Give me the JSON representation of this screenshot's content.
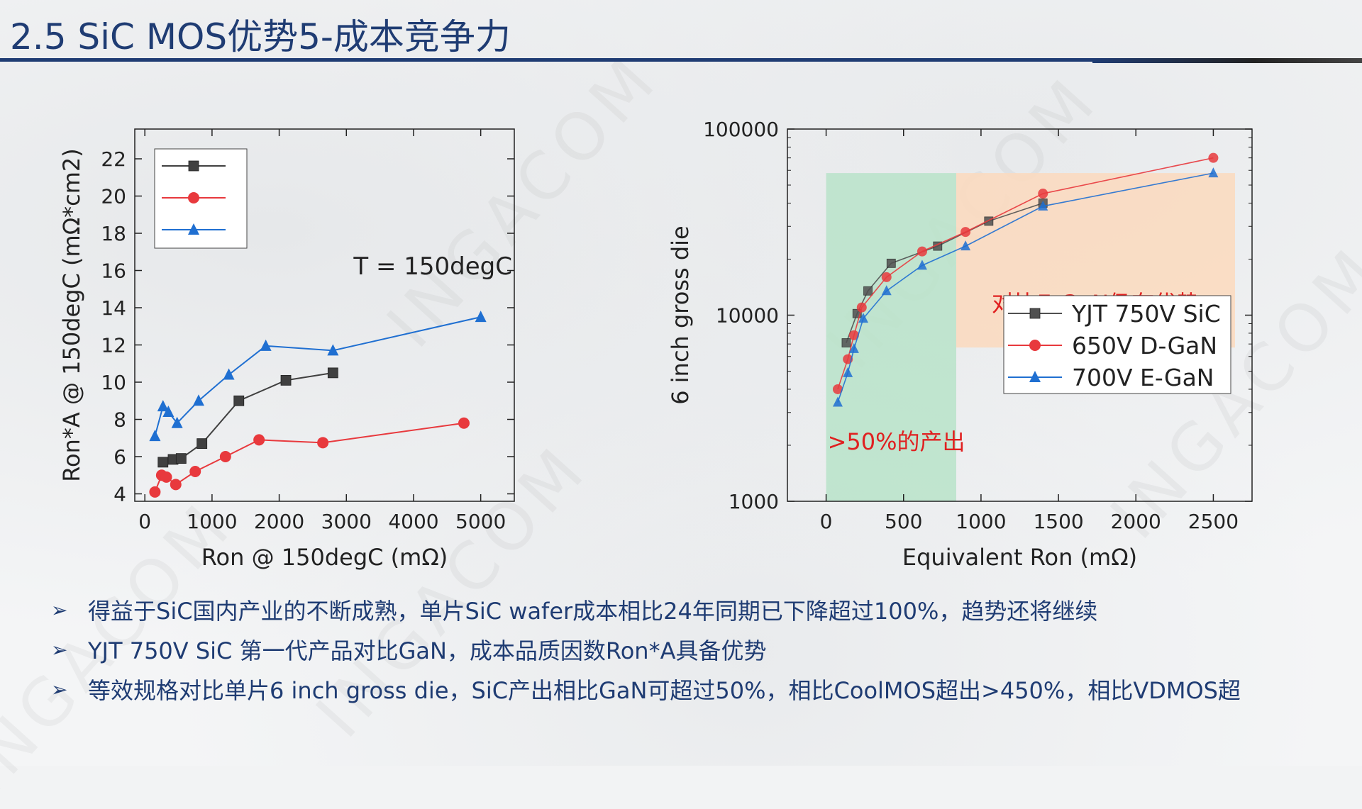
{
  "slide": {
    "title": "2.5 SiC MOS优势5-成本竞争力",
    "watermark": "INGACOM",
    "colors": {
      "title": "#1f3c73",
      "bullet_text": "#1f3c73",
      "red_text": "#e02020"
    }
  },
  "chart_data": [
    {
      "type": "line",
      "xlabel": "Ron @ 150degC (mΩ)",
      "ylabel": "Ron*A @ 150degC (mΩ*cm2)",
      "xlim": [
        -150,
        5500
      ],
      "ylim": [
        3.6,
        23.6
      ],
      "xticks": [
        0,
        1000,
        2000,
        3000,
        4000,
        5000
      ],
      "yticks": [
        4,
        6,
        8,
        10,
        12,
        14,
        16,
        18,
        20,
        22
      ],
      "grid": false,
      "legend_position": "top-left",
      "annotation": "T = 150degC",
      "series": [
        {
          "marker": "square",
          "color": "#404040",
          "x": [
            270,
            420,
            540,
            850,
            1400,
            2100,
            2800
          ],
          "y": [
            5.7,
            5.85,
            5.9,
            6.7,
            9.0,
            10.1,
            10.5
          ]
        },
        {
          "marker": "circle",
          "color": "#e8393d",
          "x": [
            150,
            250,
            320,
            460,
            750,
            1200,
            1700,
            2650,
            4750
          ],
          "y": [
            4.1,
            5.0,
            4.9,
            4.5,
            5.2,
            6.0,
            6.9,
            6.75,
            7.8
          ]
        },
        {
          "marker": "triangle",
          "color": "#1f6fd1",
          "x": [
            150,
            270,
            350,
            480,
            800,
            1250,
            1800,
            2800,
            5000
          ],
          "y": [
            7.1,
            8.7,
            8.4,
            7.8,
            9.0,
            10.4,
            11.95,
            11.7,
            13.5
          ]
        }
      ]
    },
    {
      "type": "line",
      "xlabel": "Equivalent Ron (mΩ)",
      "ylabel": "6 inch gross die",
      "y_scale": "log",
      "xlim": [
        -250,
        2750
      ],
      "ylim": [
        1000,
        100000
      ],
      "xticks": [
        0,
        500,
        1000,
        1500,
        2000,
        2500
      ],
      "yticks": [
        1000,
        10000,
        100000
      ],
      "grid": false,
      "legend_position": "bottom-right",
      "regions": [
        {
          "x0": 0,
          "x1": 840,
          "y0": 1000,
          "y1": 58000,
          "color": "#b9e3c9",
          "label": ">50%的产出"
        },
        {
          "x0": 840,
          "x1": 2640,
          "y0": 6700,
          "y1": 58000,
          "color": "#fbd9bd",
          "label": "对比E-GaN仍有优势"
        }
      ],
      "series": [
        {
          "name": "YJT 750V SiC",
          "marker": "square",
          "color": "#505050",
          "x": [
            130,
            200,
            270,
            420,
            720,
            1050,
            1400
          ],
          "y": [
            7100,
            10200,
            13500,
            19000,
            23500,
            32000,
            40000
          ]
        },
        {
          "name": "650V D-GaN",
          "marker": "circle",
          "color": "#e8393d",
          "x": [
            75,
            140,
            180,
            230,
            390,
            620,
            900,
            1400,
            2500
          ],
          "y": [
            4000,
            5800,
            7800,
            11000,
            16000,
            22000,
            28000,
            45000,
            70000
          ]
        },
        {
          "name": "700V E-GaN",
          "marker": "triangle",
          "color": "#1f6fd1",
          "x": [
            75,
            140,
            180,
            240,
            390,
            620,
            900,
            1400,
            2500
          ],
          "y": [
            3400,
            4900,
            6600,
            9600,
            13500,
            18500,
            23500,
            38500,
            58000
          ]
        }
      ]
    }
  ],
  "bullets": [
    "得益于SiC国内产业的不断成熟，单片SiC wafer成本相比24年同期已下降超过100%，趋势还将继续",
    "YJT 750V SiC 第一代产品对比GaN，成本品质因数Ron*A具备优势",
    "等效规格对比单片6 inch gross die，SiC产出相比GaN可超过50%，相比CoolMOS超出>450%，相比VDMOS超"
  ],
  "bullet_marker": "➢"
}
